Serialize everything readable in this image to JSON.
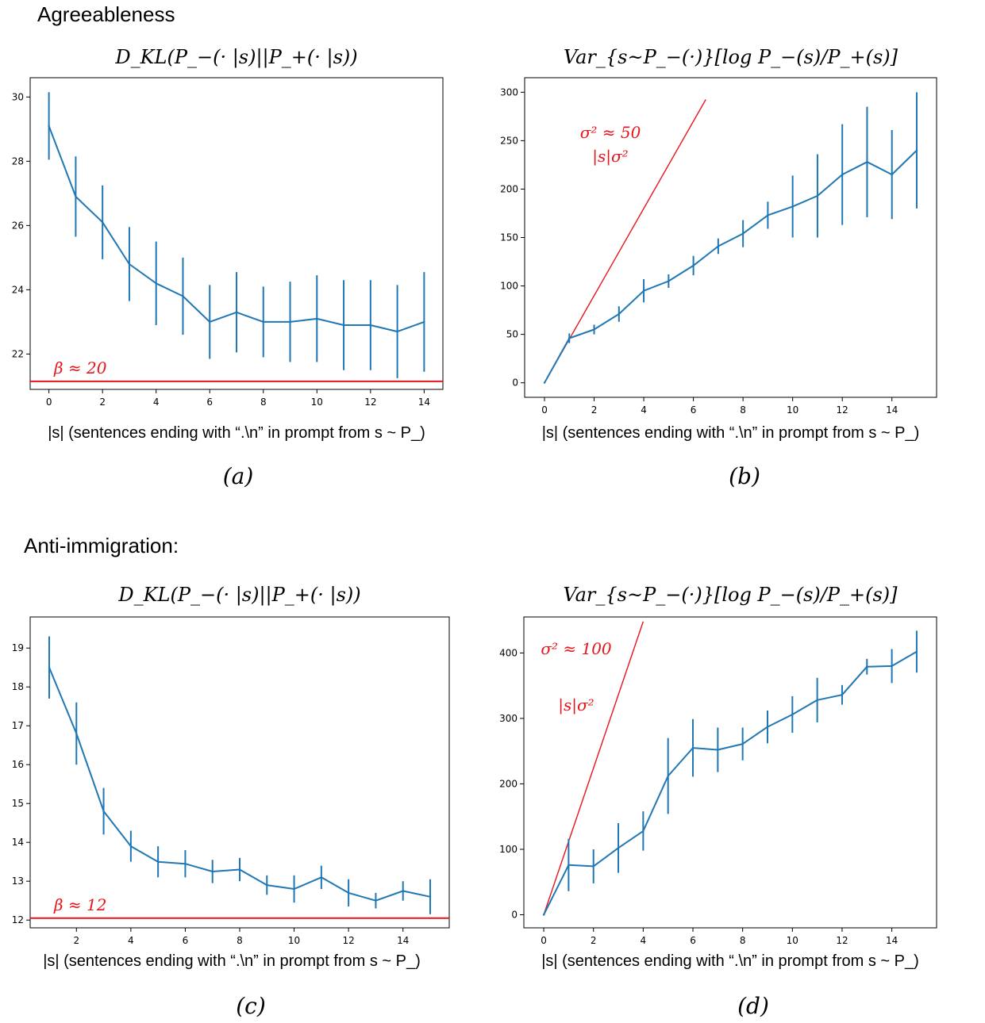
{
  "sections": [
    {
      "title": "Agreeableness"
    },
    {
      "title": "Anti-immigration:"
    }
  ],
  "chart_data": [
    {
      "id": "a",
      "type": "line",
      "panel_label": "(a)",
      "title": "D_KL(P_−(· |s)||P_+(· |s))",
      "xlabel": "|s| (sentences ending with “.\\n” in prompt from s ~ P_)",
      "ylabel": "",
      "xlim": [
        -0.7,
        14.7
      ],
      "ylim": [
        20.9,
        30.6
      ],
      "xticks": [
        0,
        2,
        4,
        6,
        8,
        10,
        12,
        14
      ],
      "yticks": [
        22,
        24,
        26,
        28,
        30
      ],
      "x": [
        0,
        1,
        2,
        3,
        4,
        5,
        6,
        7,
        8,
        9,
        10,
        11,
        12,
        13,
        14
      ],
      "values": [
        29.1,
        26.9,
        26.1,
        24.8,
        24.2,
        23.8,
        23.0,
        23.3,
        23.0,
        23.0,
        23.1,
        22.9,
        22.9,
        22.7,
        23.0
      ],
      "err": [
        1.05,
        1.25,
        1.15,
        1.15,
        1.3,
        1.2,
        1.15,
        1.25,
        1.1,
        1.25,
        1.35,
        1.4,
        1.4,
        1.45,
        1.55
      ],
      "hline": {
        "y": 21.15,
        "label": "β ≈ 20"
      },
      "grid": false
    },
    {
      "id": "b",
      "type": "line",
      "panel_label": "(b)",
      "title": "Var_{s~P_−(·)}[log P_−(s)/P_+(s)]",
      "xlabel": "|s| (sentences ending with “.\\n” in prompt from s ~ P_)",
      "ylabel": "",
      "xlim": [
        -0.8,
        15.8
      ],
      "ylim": [
        -15,
        315
      ],
      "xticks": [
        0,
        2,
        4,
        6,
        8,
        10,
        12,
        14
      ],
      "yticks": [
        0,
        50,
        100,
        150,
        200,
        250,
        300
      ],
      "x": [
        0,
        1,
        2,
        3,
        4,
        5,
        6,
        7,
        8,
        9,
        10,
        11,
        12,
        13,
        14,
        15
      ],
      "values": [
        0,
        46,
        55,
        71,
        95,
        105,
        121,
        141,
        154,
        173,
        182,
        193,
        215,
        228,
        215,
        240
      ],
      "err": [
        0,
        5,
        5,
        8,
        12,
        7,
        10,
        8,
        14,
        14,
        32,
        43,
        52,
        57,
        46,
        60
      ],
      "refline": {
        "slope": 45,
        "x_end": 6.5,
        "label_top": "σ² ≈ 50",
        "label_bottom": "|s|σ²"
      },
      "grid": false
    },
    {
      "id": "c",
      "type": "line",
      "panel_label": "(c)",
      "title": "D_KL(P_−(· |s)||P_+(· |s))",
      "xlabel": "|s| (sentences ending with “.\\n” in prompt from s ~ P_)",
      "ylabel": "",
      "xlim": [
        0.3,
        15.7
      ],
      "ylim": [
        11.8,
        19.8
      ],
      "xticks": [
        2,
        4,
        6,
        8,
        10,
        12,
        14
      ],
      "yticks": [
        12,
        13,
        14,
        15,
        16,
        17,
        18,
        19
      ],
      "x": [
        1,
        2,
        3,
        4,
        5,
        6,
        7,
        8,
        9,
        10,
        11,
        12,
        13,
        14,
        15
      ],
      "values": [
        18.5,
        16.8,
        14.8,
        13.9,
        13.5,
        13.45,
        13.25,
        13.3,
        12.9,
        12.8,
        13.1,
        12.7,
        12.5,
        12.75,
        12.6
      ],
      "err": [
        0.8,
        0.8,
        0.6,
        0.4,
        0.4,
        0.35,
        0.3,
        0.3,
        0.25,
        0.35,
        0.3,
        0.35,
        0.2,
        0.25,
        0.45
      ],
      "hline": {
        "y": 12.05,
        "label": "β ≈ 12"
      },
      "grid": false
    },
    {
      "id": "d",
      "type": "line",
      "panel_label": "(d)",
      "title": "Var_{s~P_−(·)}[log P_−(s)/P_+(s)]",
      "xlabel": "|s| (sentences ending with “.\\n” in prompt from s ~ P_)",
      "ylabel": "",
      "xlim": [
        -0.8,
        15.8
      ],
      "ylim": [
        -20,
        455
      ],
      "xticks": [
        0,
        2,
        4,
        6,
        8,
        10,
        12,
        14
      ],
      "yticks": [
        0,
        100,
        200,
        300,
        400
      ],
      "x": [
        0,
        1,
        2,
        3,
        4,
        5,
        6,
        7,
        8,
        9,
        10,
        11,
        12,
        13,
        14,
        15
      ],
      "values": [
        0,
        76,
        74,
        102,
        128,
        212,
        255,
        252,
        261,
        287,
        306,
        328,
        336,
        379,
        380,
        402
      ],
      "err": [
        0,
        40,
        26,
        38,
        30,
        58,
        44,
        34,
        25,
        25,
        28,
        34,
        15,
        12,
        26,
        32
      ],
      "refline": {
        "slope": 112,
        "x_end": 4.0,
        "label_top": "σ² ≈ 100",
        "label_bottom": "|s|σ²"
      },
      "grid": false
    }
  ],
  "colors": {
    "series": "#1f77b4",
    "annotation": "#e8141b"
  }
}
